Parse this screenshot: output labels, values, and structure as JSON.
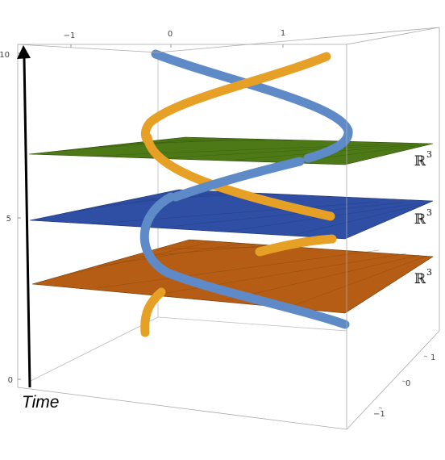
{
  "axes": {
    "top_ticks": [
      "−1",
      "0",
      "1"
    ],
    "left_ticks": [
      "10",
      "5",
      "0"
    ],
    "right_ticks": [
      "1",
      "0",
      "−1"
    ]
  },
  "planes": [
    {
      "label": "ℝ",
      "power": "3",
      "color": "#4d7a16",
      "level": 7.2
    },
    {
      "label": "ℝ",
      "power": "3",
      "color": "#2f4fa5",
      "level": 5.2
    },
    {
      "label": "ℝ",
      "power": "3",
      "color": "#b55d14",
      "level": 3.0
    }
  ],
  "curves": [
    {
      "name": "blue",
      "color": "#5f8ac8"
    },
    {
      "name": "orange",
      "color": "#e6a025"
    }
  ],
  "time_label": "Time"
}
